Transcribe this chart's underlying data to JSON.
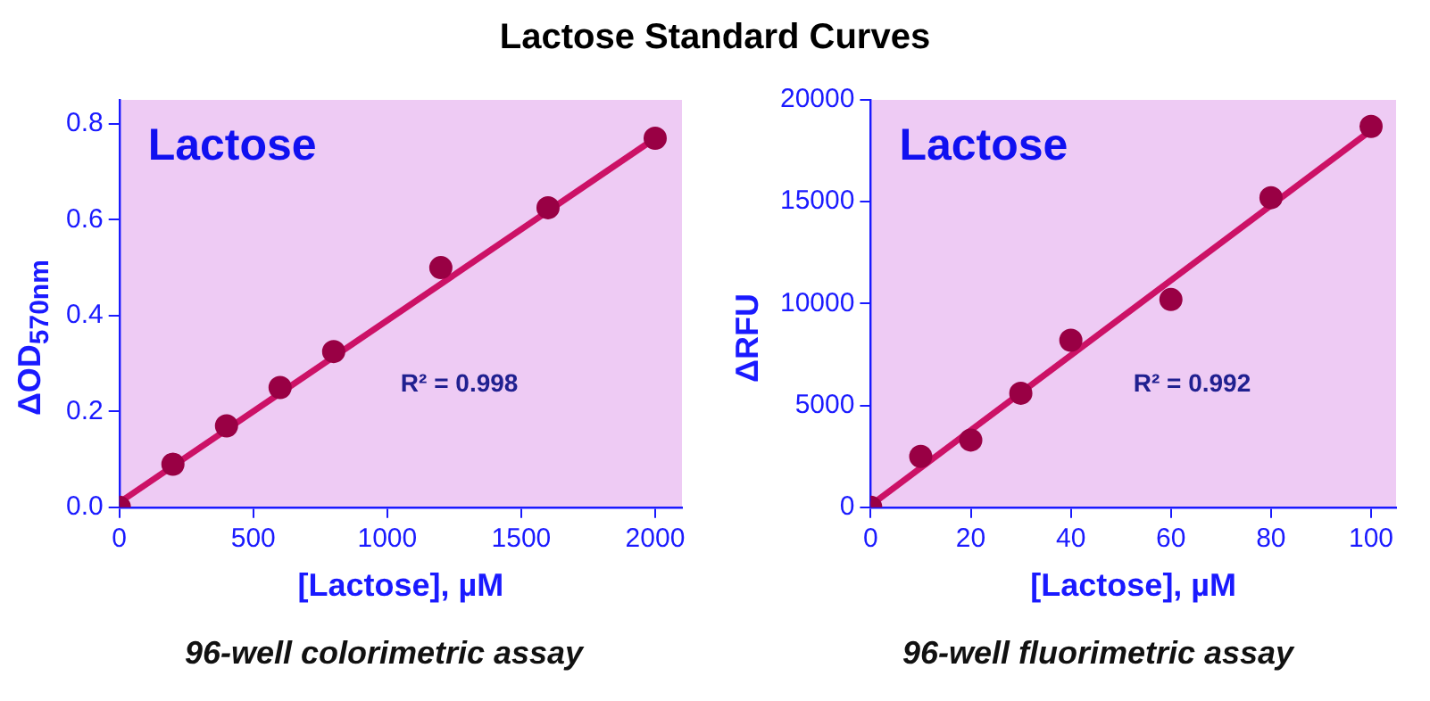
{
  "chart_data": [
    {
      "type": "scatter",
      "title": "Lactose Standard Curves",
      "xlabel": "[Lactose], µM",
      "ylabel": "ΔOD$_{570nm}$",
      "series": [
        {
          "type": "scatter",
          "color": "#990044",
          "marker": "circle",
          "x": [
            0,
            200,
            400,
            600,
            800,
            1200,
            1600,
            2000
          ],
          "values": [
            0,
            0.09,
            0.17,
            0.25,
            0.325,
            0.5,
            0.625,
            0.77
          ]
        },
        {
          "type": "line",
          "color": "#cc1166",
          "marker": "none",
          "x": [
            0,
            2000
          ],
          "values": [
            0.01,
            0.77
          ]
        }
      ],
      "xlim": [
        0,
        2100
      ],
      "xticks": [
        0,
        500,
        1000,
        1500,
        2000
      ],
      "ylim": [
        0,
        0.85
      ],
      "yticks": [
        {
          "value": 0,
          "label": "0.0"
        },
        {
          "value": 0.2,
          "label": "0.2"
        },
        {
          "value": 0.4,
          "label": "0.4"
        },
        {
          "value": 0.6,
          "label": "0.6"
        },
        {
          "value": 0.8,
          "label": "0.8"
        }
      ],
      "grid": false,
      "annotations": [
        "Lactose",
        "R² = 0.998",
        "96-well colorimetric assay"
      ]
    },
    {
      "type": "scatter",
      "xlabel": "[Lactose], µM",
      "ylabel": "ΔRFU",
      "series": [
        {
          "type": "scatter",
          "color": "#990044",
          "marker": "circle",
          "x": [
            0,
            10,
            20,
            30,
            40,
            60,
            80,
            100
          ],
          "values": [
            0,
            2500,
            3300,
            5600,
            8200,
            10200,
            15200,
            18700
          ]
        },
        {
          "type": "line",
          "color": "#cc1166",
          "marker": "none",
          "x": [
            0,
            100
          ],
          "values": [
            100,
            18500
          ]
        }
      ],
      "xlim": [
        0,
        105
      ],
      "xticks": [
        0,
        20,
        40,
        60,
        80,
        100
      ],
      "ylim": [
        0,
        20000
      ],
      "yticks": [
        0,
        5000,
        10000,
        15000,
        20000
      ],
      "grid": false,
      "annotations": [
        "Lactose",
        "R² = 0.992",
        "96-well fluorimetric assay"
      ]
    }
  ]
}
